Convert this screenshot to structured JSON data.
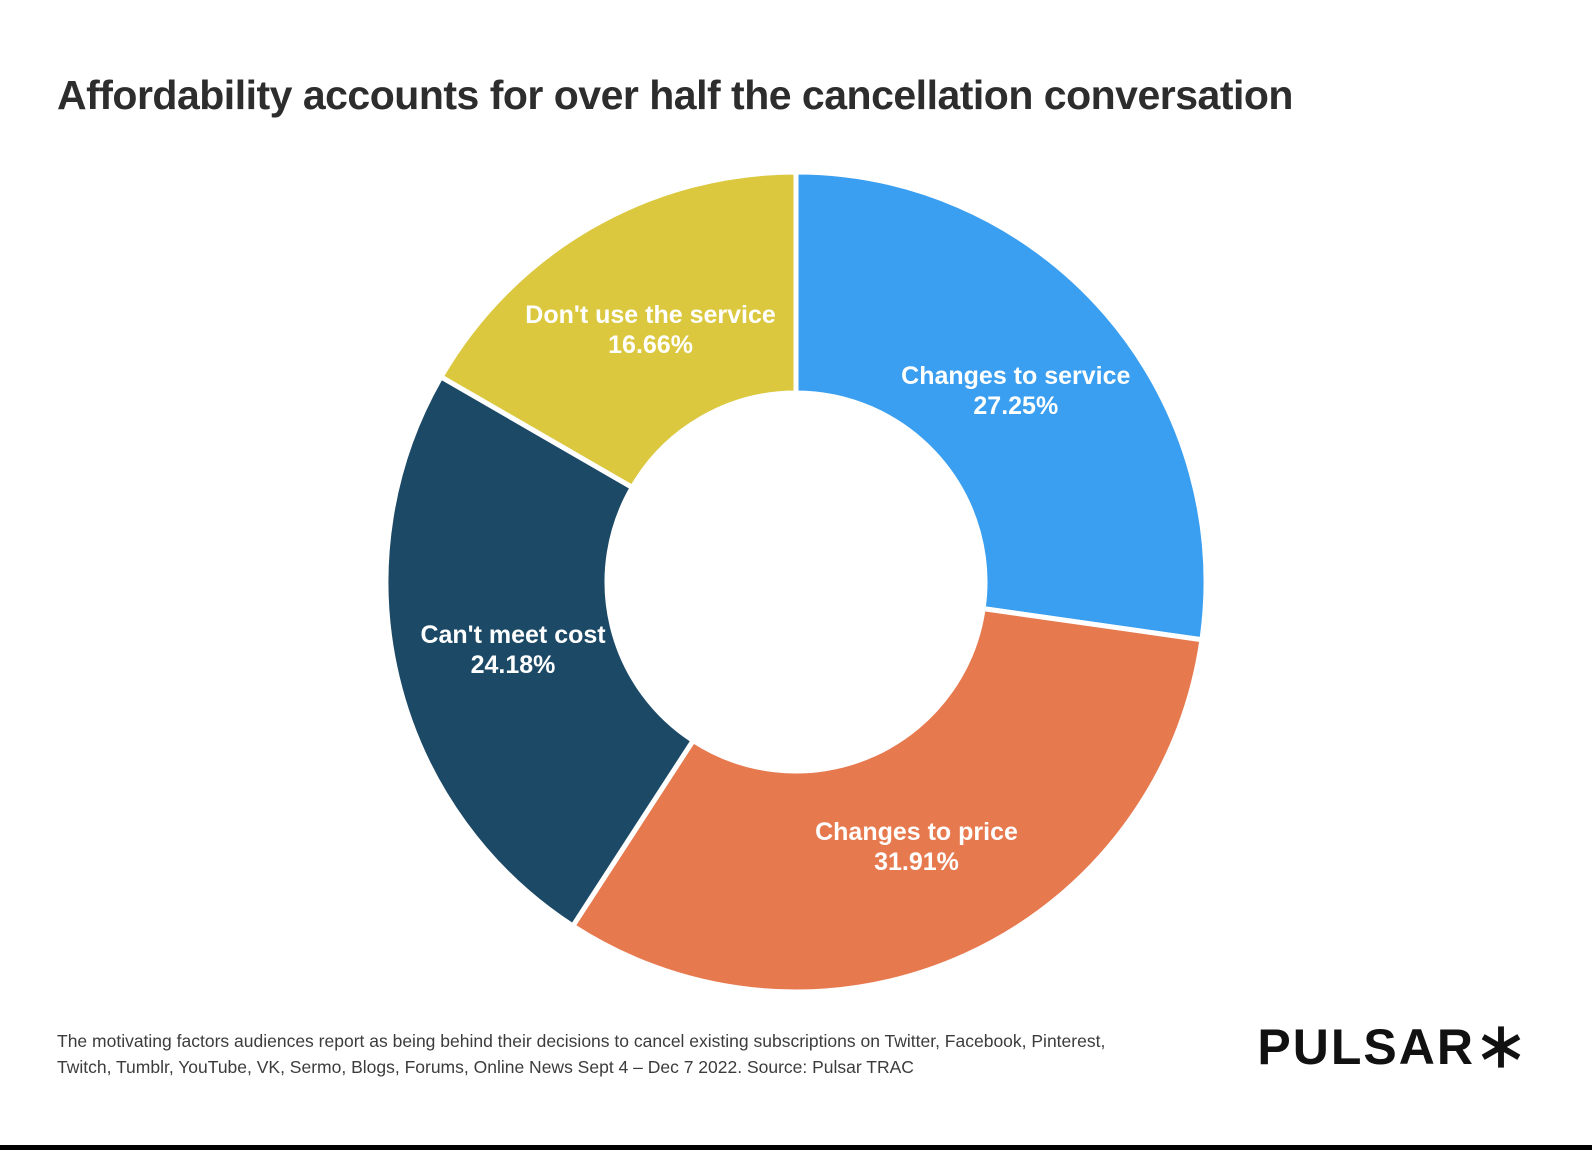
{
  "page": {
    "title": "Affordability accounts for over half the cancellation conversation"
  },
  "chart_data": {
    "type": "pie",
    "subtype": "donut",
    "title": "Affordability accounts for over half the cancellation conversation",
    "direction": "clockwise",
    "start_angle_deg": 0,
    "inner_radius_pct": 46,
    "value_format": "percent",
    "labels_position": "inside",
    "label_text_color": "#ffffff",
    "slices": [
      {
        "label": "Changes to service",
        "value": 27.25,
        "color": "#3A9FF0"
      },
      {
        "label": "Changes to price",
        "value": 31.91,
        "color": "#E7794F"
      },
      {
        "label": "Can't meet cost",
        "value": 24.18,
        "color": "#1C4966"
      },
      {
        "label": "Don't use the service",
        "value": 16.66,
        "color": "#DBC83F"
      }
    ]
  },
  "footer": {
    "caption_lines": [
      "The motivating factors audiences report as being behind their decisions to cancel existing subscriptions on Twitter, Facebook, Pinterest,",
      "Twitch, Tumblr, YouTube, VK, Sermo, Blogs, Forums, Online News Sept 4 – Dec 7 2022. Source: Pulsar TRAC"
    ],
    "logo_text": "PULSAR",
    "logo_mark": "asterisk-icon"
  },
  "colors": {
    "background": "#ffffff",
    "title_text": "#2d2d2d",
    "caption_text": "#3c3c3c",
    "logo": "#111111",
    "bottom_bar": "#000000",
    "slice_gap_stroke": "#ffffff"
  }
}
